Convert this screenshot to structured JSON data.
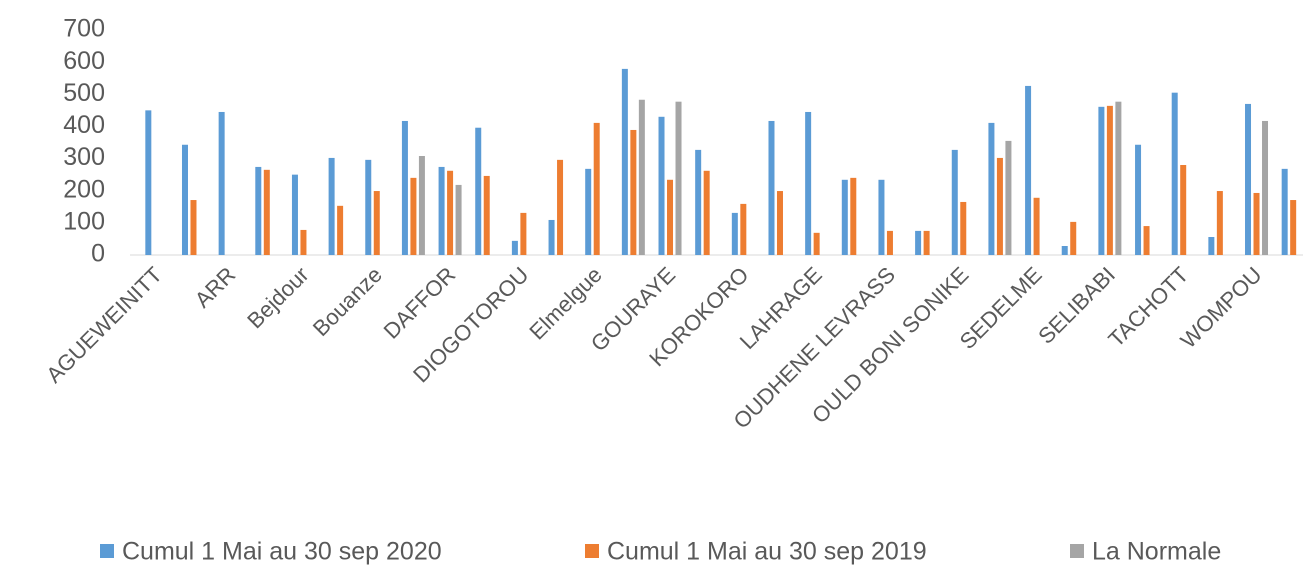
{
  "chart_data": {
    "type": "bar",
    "categories": [
      "AGUEWEINITT",
      null,
      "ARR",
      null,
      "Bejdour",
      null,
      "Bouanze",
      null,
      "DAFFOR",
      null,
      "DIOGOTOROU",
      null,
      "Elmelgue",
      null,
      "GOURAYE",
      null,
      "KOROKORO",
      null,
      "LAHRAGE",
      null,
      "OUDHENE LEVRASS",
      null,
      "OULD BONI SONIKE",
      null,
      "SEDELME",
      null,
      "SELIBABI",
      null,
      "TACHOTT",
      null,
      "WOMPOU",
      null
    ],
    "series": [
      {
        "name": "Cumul 1 Mai au 30 sep 2020",
        "color": "#5b9bd5",
        "values": [
          450,
          343,
          445,
          274,
          250,
          302,
          296,
          417,
          274,
          396,
          44,
          109,
          268,
          579,
          430,
          327,
          131,
          417,
          445,
          234,
          234,
          75,
          327,
          411,
          526,
          28,
          461,
          343,
          505,
          56,
          470,
          268
        ]
      },
      {
        "name": "Cumul 1 Mai au 30 sep 2019",
        "color": "#ed7d31",
        "values": [
          null,
          171,
          null,
          265,
          78,
          153,
          199,
          240,
          262,
          246,
          131,
          296,
          411,
          389,
          234,
          262,
          159,
          199,
          69,
          240,
          75,
          75,
          165,
          302,
          178,
          103,
          464,
          90,
          280,
          199,
          193,
          171
        ]
      },
      {
        "name": "La Normale",
        "color": "#a5a5a5",
        "values": [
          null,
          null,
          null,
          null,
          null,
          null,
          null,
          308,
          218,
          null,
          null,
          null,
          null,
          483,
          477,
          null,
          null,
          null,
          null,
          null,
          null,
          null,
          null,
          355,
          null,
          null,
          477,
          null,
          null,
          null,
          417,
          null
        ]
      }
    ],
    "ylim": [
      0,
      700
    ],
    "yticks": [
      0,
      100,
      200,
      300,
      400,
      500,
      600,
      700
    ],
    "grid": false
  }
}
